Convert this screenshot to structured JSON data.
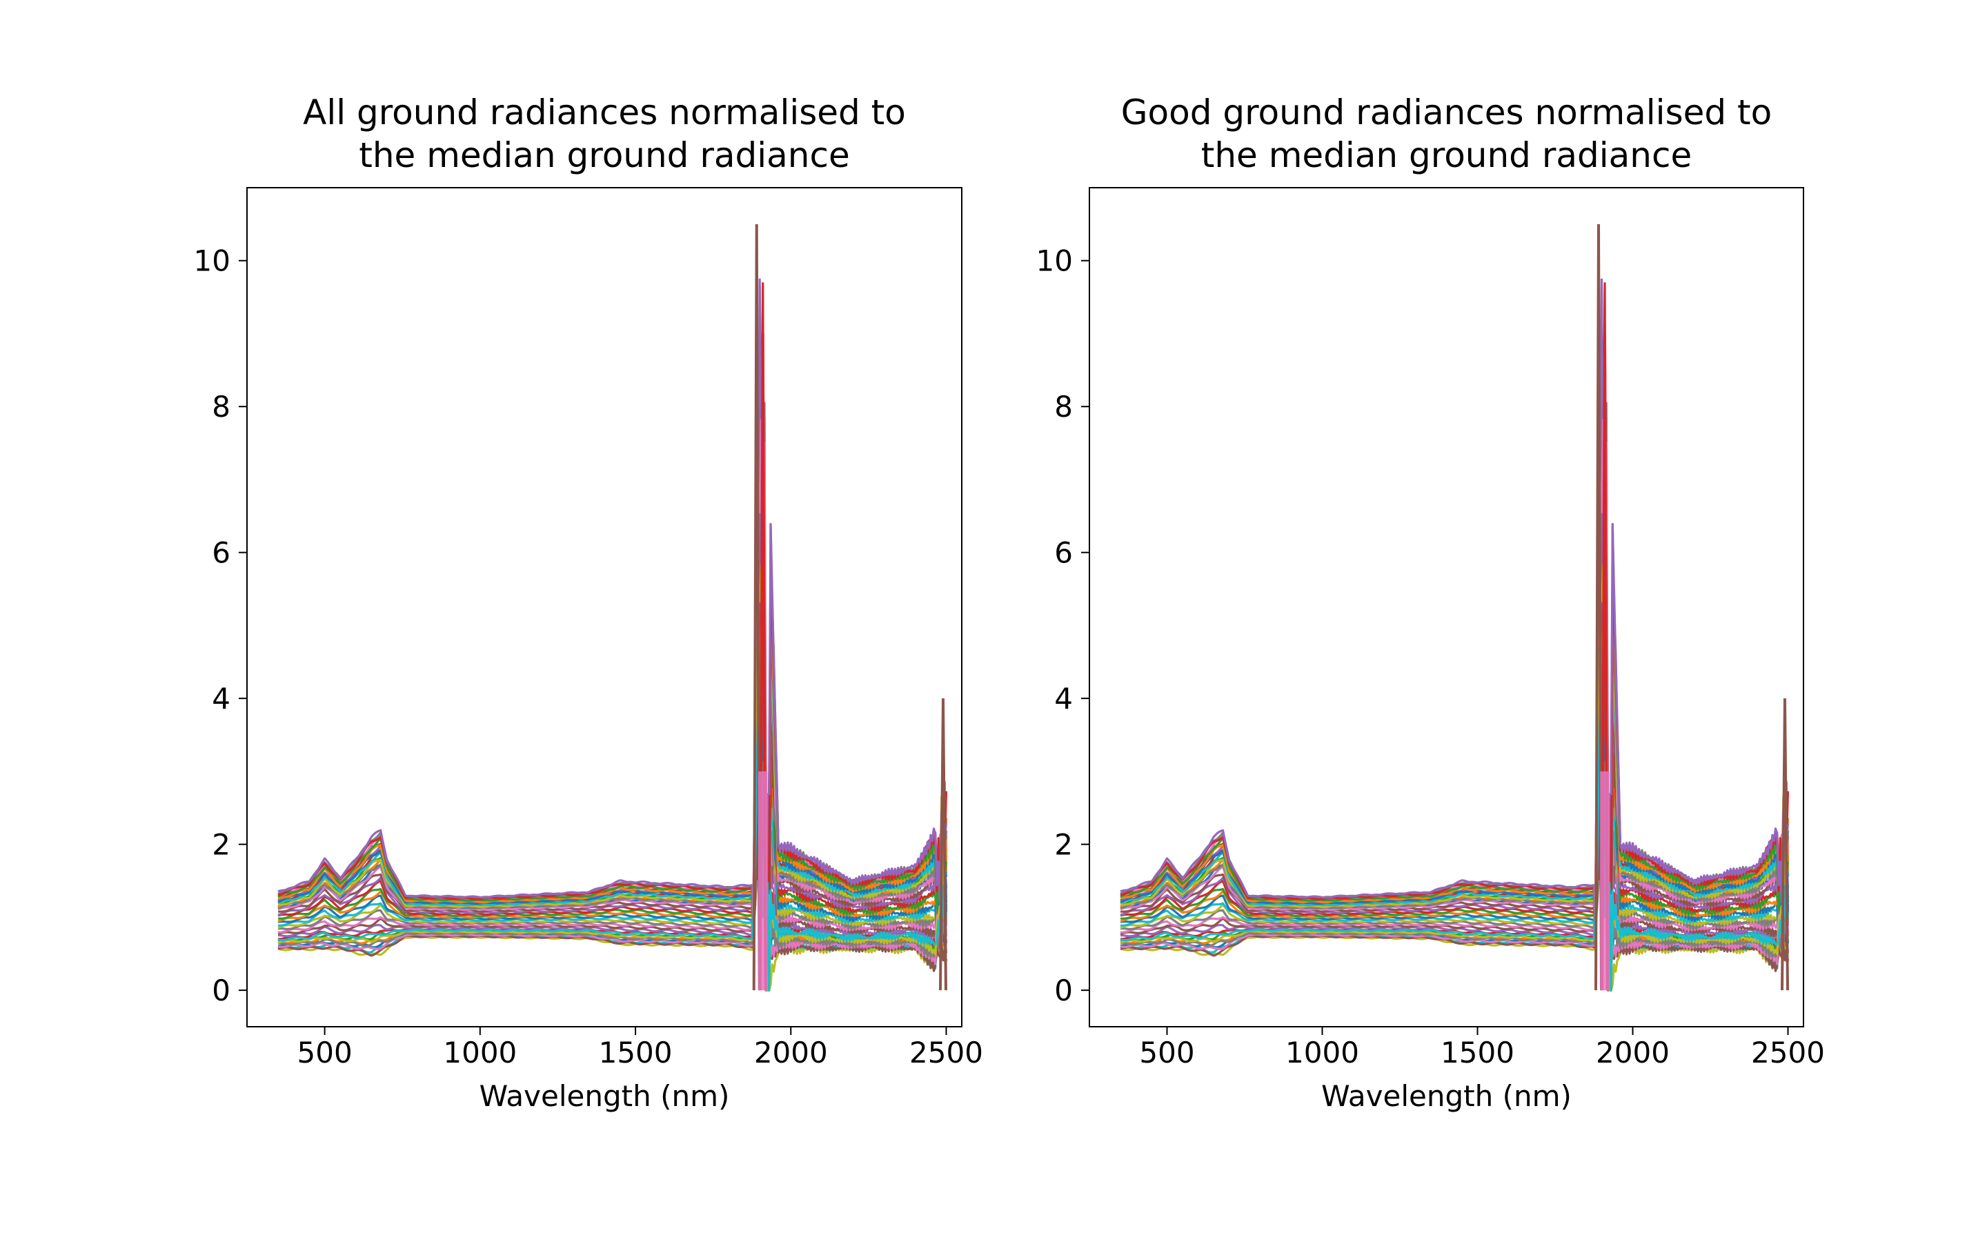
{
  "chart_data": [
    {
      "type": "line",
      "title": "All ground radiances normalised to\nthe median ground radiance",
      "xlabel": "Wavelength (nm)",
      "ylabel": "",
      "xlim": [
        250,
        2550
      ],
      "ylim": [
        -0.5,
        11.0
      ],
      "xticks": [
        500,
        1000,
        1500,
        2000,
        2500
      ],
      "yticks": [
        0,
        2,
        4,
        6,
        8,
        10
      ],
      "grid": false,
      "legend": false,
      "series_count": 40,
      "x_range": [
        350,
        2500
      ],
      "y_envelope": {
        "x": [
          350,
          450,
          500,
          550,
          600,
          650,
          680,
          700,
          760,
          1000,
          1350,
          1450,
          1800,
          1880,
          1900,
          1920,
          1960,
          2000,
          2200,
          2400,
          2480,
          2490,
          2500
        ],
        "min": [
          0.55,
          0.55,
          0.55,
          0.55,
          0.5,
          0.45,
          0.48,
          0.55,
          0.72,
          0.72,
          0.7,
          0.62,
          0.6,
          0.55,
          0.0,
          0.0,
          0.5,
          0.55,
          0.55,
          0.55,
          0.2,
          0.0,
          0.0
        ],
        "max": [
          1.35,
          1.5,
          1.8,
          1.55,
          1.8,
          2.1,
          2.2,
          1.8,
          1.3,
          1.28,
          1.35,
          1.5,
          1.42,
          1.45,
          10.5,
          9.0,
          2.0,
          1.95,
          1.5,
          1.7,
          2.3,
          4.0,
          3.0
        ]
      },
      "peaks": [
        {
          "x": 1890,
          "y": 10.5
        },
        {
          "x": 1910,
          "y": 9.0
        },
        {
          "x": 2490,
          "y": 4.0
        }
      ]
    },
    {
      "type": "line",
      "title": "Good ground radiances normalised to\nthe median ground radiance",
      "xlabel": "Wavelength (nm)",
      "ylabel": "",
      "xlim": [
        250,
        2550
      ],
      "ylim": [
        -0.5,
        11.0
      ],
      "xticks": [
        500,
        1000,
        1500,
        2000,
        2500
      ],
      "yticks": [
        0,
        2,
        4,
        6,
        8,
        10
      ],
      "grid": false,
      "legend": false,
      "series_count": 40,
      "x_range": [
        350,
        2500
      ],
      "y_envelope": {
        "x": [
          350,
          450,
          500,
          550,
          600,
          650,
          680,
          700,
          760,
          1000,
          1350,
          1450,
          1800,
          1880,
          1900,
          1920,
          1960,
          2000,
          2200,
          2400,
          2480,
          2490,
          2500
        ],
        "min": [
          0.55,
          0.55,
          0.55,
          0.55,
          0.5,
          0.45,
          0.48,
          0.55,
          0.72,
          0.72,
          0.7,
          0.62,
          0.6,
          0.55,
          0.0,
          0.0,
          0.5,
          0.55,
          0.55,
          0.55,
          0.2,
          0.0,
          0.0
        ],
        "max": [
          1.35,
          1.5,
          1.8,
          1.55,
          1.8,
          2.1,
          2.2,
          1.8,
          1.3,
          1.28,
          1.35,
          1.5,
          1.42,
          1.45,
          10.5,
          9.0,
          2.0,
          1.95,
          1.5,
          1.7,
          2.3,
          4.0,
          3.0
        ]
      },
      "peaks": [
        {
          "x": 1890,
          "y": 10.5
        },
        {
          "x": 1910,
          "y": 9.0
        },
        {
          "x": 2490,
          "y": 4.0
        }
      ]
    }
  ],
  "colors": [
    "#1f77b4",
    "#ff7f0e",
    "#2ca02c",
    "#d62728",
    "#9467bd",
    "#8c564b",
    "#e377c2",
    "#7f7f7f",
    "#bcbd22",
    "#17becf"
  ]
}
